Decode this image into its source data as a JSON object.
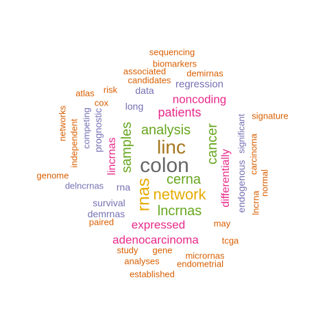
{
  "colors": {
    "orange": "#d95f02",
    "purple": "#7570b3",
    "magenta": "#e7298a",
    "green": "#66a61e",
    "gold": "#e6ab02",
    "brown": "#a6761d",
    "gray": "#666666"
  },
  "words": [
    {
      "text": "colon",
      "color": "gray",
      "orientation": "horizontal"
    },
    {
      "text": "linc",
      "color": "brown",
      "orientation": "horizontal"
    },
    {
      "text": "network",
      "color": "gold",
      "orientation": "horizontal"
    },
    {
      "text": "rnas",
      "color": "gold",
      "orientation": "vertical"
    },
    {
      "text": "cerna",
      "color": "green",
      "orientation": "horizontal"
    },
    {
      "text": "lncrnas",
      "color": "green",
      "orientation": "horizontal"
    },
    {
      "text": "analysis",
      "color": "green",
      "orientation": "horizontal"
    },
    {
      "text": "samples",
      "color": "green",
      "orientation": "vertical"
    },
    {
      "text": "cancer",
      "color": "green",
      "orientation": "vertical"
    },
    {
      "text": "patients",
      "color": "magenta",
      "orientation": "horizontal"
    },
    {
      "text": "noncoding",
      "color": "magenta",
      "orientation": "horizontal"
    },
    {
      "text": "expressed",
      "color": "magenta",
      "orientation": "horizontal"
    },
    {
      "text": "adenocarcinoma",
      "color": "magenta",
      "orientation": "horizontal"
    },
    {
      "text": "differentially",
      "color": "magenta",
      "orientation": "vertical"
    },
    {
      "text": "lincrnas",
      "color": "magenta",
      "orientation": "vertical"
    },
    {
      "text": "regression",
      "color": "purple",
      "orientation": "horizontal"
    },
    {
      "text": "survival",
      "color": "purple",
      "orientation": "horizontal"
    },
    {
      "text": "demrnas",
      "color": "purple",
      "orientation": "horizontal"
    },
    {
      "text": "long",
      "color": "purple",
      "orientation": "horizontal"
    },
    {
      "text": "data",
      "color": "purple",
      "orientation": "horizontal"
    },
    {
      "text": "rna",
      "color": "purple",
      "orientation": "horizontal"
    },
    {
      "text": "delncrnas",
      "color": "purple",
      "orientation": "horizontal"
    },
    {
      "text": "prognostic",
      "color": "purple",
      "orientation": "vertical"
    },
    {
      "text": "competing",
      "color": "purple",
      "orientation": "vertical"
    },
    {
      "text": "endogenous",
      "color": "purple",
      "orientation": "vertical"
    },
    {
      "text": "significant",
      "color": "purple",
      "orientation": "vertical"
    },
    {
      "text": "sequencing",
      "color": "orange",
      "orientation": "horizontal"
    },
    {
      "text": "biomarkers",
      "color": "orange",
      "orientation": "horizontal"
    },
    {
      "text": "associated",
      "color": "orange",
      "orientation": "horizontal"
    },
    {
      "text": "demirnas",
      "color": "orange",
      "orientation": "horizontal"
    },
    {
      "text": "candidates",
      "color": "orange",
      "orientation": "horizontal"
    },
    {
      "text": "risk",
      "color": "orange",
      "orientation": "horizontal"
    },
    {
      "text": "atlas",
      "color": "orange",
      "orientation": "horizontal"
    },
    {
      "text": "cox",
      "color": "orange",
      "orientation": "horizontal"
    },
    {
      "text": "signature",
      "color": "orange",
      "orientation": "horizontal"
    },
    {
      "text": "genome",
      "color": "orange",
      "orientation": "horizontal"
    },
    {
      "text": "paired",
      "color": "orange",
      "orientation": "horizontal"
    },
    {
      "text": "may",
      "color": "orange",
      "orientation": "horizontal"
    },
    {
      "text": "tcga",
      "color": "orange",
      "orientation": "horizontal"
    },
    {
      "text": "study",
      "color": "orange",
      "orientation": "horizontal"
    },
    {
      "text": "gene",
      "color": "orange",
      "orientation": "horizontal"
    },
    {
      "text": "micrornas",
      "color": "orange",
      "orientation": "horizontal"
    },
    {
      "text": "analyses",
      "color": "orange",
      "orientation": "horizontal"
    },
    {
      "text": "endometrial",
      "color": "orange",
      "orientation": "horizontal"
    },
    {
      "text": "established",
      "color": "orange",
      "orientation": "horizontal"
    },
    {
      "text": "networks",
      "color": "orange",
      "orientation": "vertical"
    },
    {
      "text": "independent",
      "color": "orange",
      "orientation": "vertical"
    },
    {
      "text": "lncrna",
      "color": "orange",
      "orientation": "vertical"
    },
    {
      "text": "carcinoma",
      "color": "orange",
      "orientation": "vertical"
    },
    {
      "text": "normal",
      "color": "orange",
      "orientation": "vertical"
    }
  ]
}
